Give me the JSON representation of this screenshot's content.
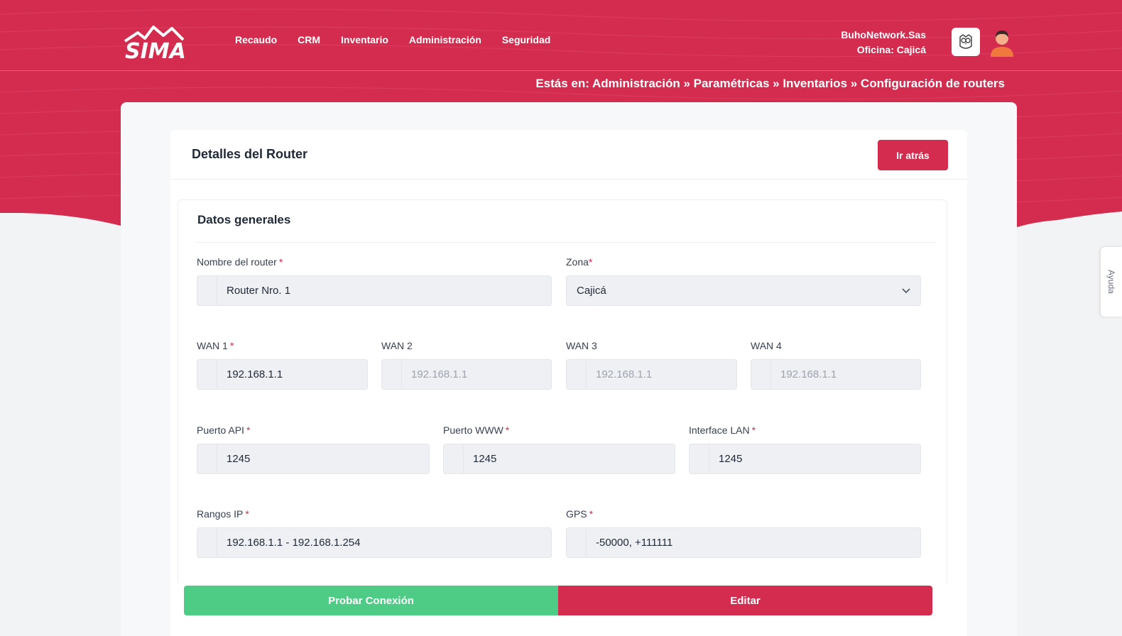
{
  "brand": {
    "logo_text": "SIMA",
    "primary_color": "#d42c4f",
    "success_color": "#4ecb85"
  },
  "nav": {
    "items": [
      "Recaudo",
      "CRM",
      "Inventario",
      "Administración",
      "Seguridad"
    ]
  },
  "user": {
    "company": "BuhoNetwork.Sas",
    "office": "Oficina: Cajicá"
  },
  "breadcrumb": "Estás en: Administración » Paramétricas » Inventarios » Configuración de routers",
  "panel": {
    "title": "Detalles del Router",
    "back_label": "Ir atrás"
  },
  "section": {
    "title": "Datos generales"
  },
  "form": {
    "router_name": {
      "label": "Nombre del router",
      "value": "Router Nro. 1"
    },
    "zone": {
      "label": "Zona",
      "value": "Cajicá"
    },
    "wan1": {
      "label": "WAN 1",
      "value": "192.168.1.1"
    },
    "wan2": {
      "label": "WAN 2",
      "placeholder": "192.168.1.1"
    },
    "wan3": {
      "label": "WAN 3",
      "placeholder": "192.168.1.1"
    },
    "wan4": {
      "label": "WAN 4",
      "placeholder": "192.168.1.1"
    },
    "api_port": {
      "label": "Puerto API",
      "value": "1245"
    },
    "www_port": {
      "label": "Puerto WWW",
      "value": "1245"
    },
    "lan_interface": {
      "label": "Interface LAN",
      "value": "1245"
    },
    "ip_ranges": {
      "label": "Rangos IP",
      "value": "192.168.1.1 - 192.168.1.254"
    },
    "gps": {
      "label": "GPS",
      "value": "-50000, +111111"
    },
    "required_mark": "*"
  },
  "actions": {
    "test_label": "Probar Conexión",
    "edit_label": "Editar"
  },
  "help_tab": {
    "label": "Ayuda"
  }
}
